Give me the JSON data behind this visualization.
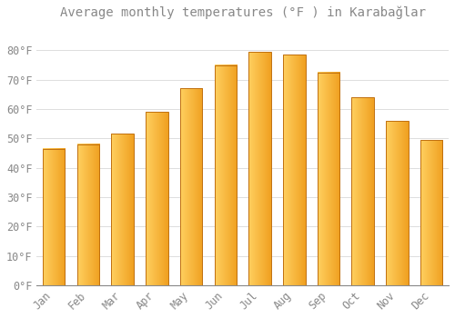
{
  "title": "Average monthly temperatures (°F ) in Karabağlar",
  "months": [
    "Jan",
    "Feb",
    "Mar",
    "Apr",
    "May",
    "Jun",
    "Jul",
    "Aug",
    "Sep",
    "Oct",
    "Nov",
    "Dec"
  ],
  "values": [
    46.5,
    48,
    51.5,
    59,
    67,
    75,
    79.5,
    78.5,
    72.5,
    64,
    56,
    49.5
  ],
  "bar_color_left": "#FFD060",
  "bar_color_right": "#F0A020",
  "bar_edge_color": "#C07010",
  "background_color": "#FFFFFF",
  "grid_color": "#DDDDDD",
  "ylim": [
    0,
    88
  ],
  "yticks": [
    0,
    10,
    20,
    30,
    40,
    50,
    60,
    70,
    80
  ],
  "ytick_labels": [
    "0°F",
    "10°F",
    "20°F",
    "30°F",
    "40°F",
    "50°F",
    "60°F",
    "70°F",
    "80°F"
  ],
  "title_fontsize": 10,
  "tick_fontsize": 8.5,
  "text_color": "#888888",
  "title_color": "#888888"
}
